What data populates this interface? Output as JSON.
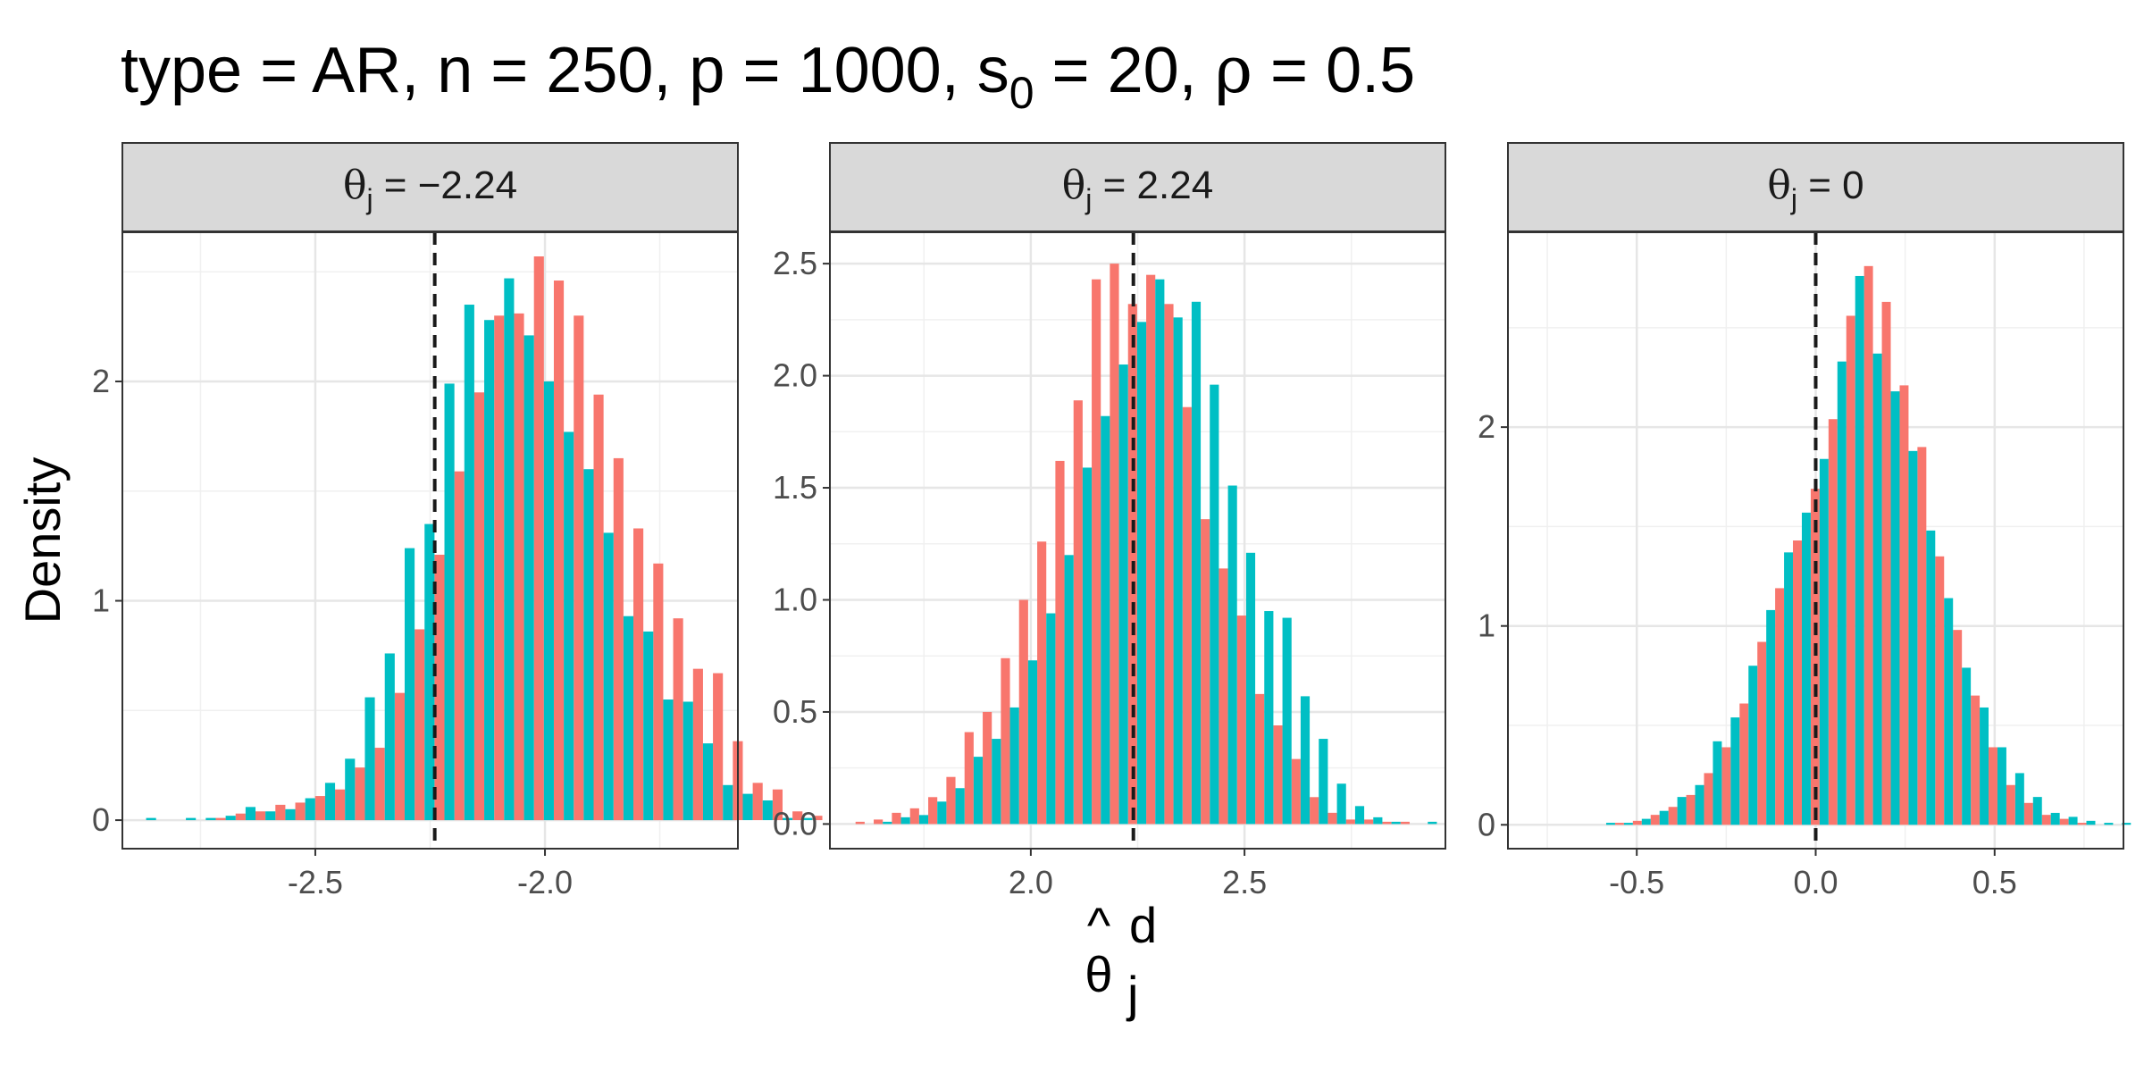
{
  "title": "type = AR, n = 250, p = 1000, s0 = 20, ρ = 0.5",
  "title_parts": {
    "a": "type = AR, n = 250, p = 1000, s",
    "sub": "0",
    "b": " = 20, ",
    "rho": "ρ",
    "c": " = 0.5"
  },
  "axes": {
    "ylabel": "Density",
    "xlabel_symbol": "θ",
    "xlabel_hat": "^",
    "xlabel_sub": "j",
    "xlabel_sup": "d"
  },
  "colors": {
    "series_a": "#F8766D",
    "series_b": "#00BFC4",
    "reference_line": "#1a1a1a",
    "strip_fill": "#d9d9d9"
  },
  "chart_data": [
    {
      "type": "bar",
      "panel_label": {
        "symbol": "θ",
        "sub": "j",
        "rest": " = −2.24"
      },
      "true_value": -2.24,
      "xlim": [
        -2.92,
        -1.58
      ],
      "ylim": [
        -0.13,
        2.68
      ],
      "xticks": [
        -2.5,
        -2.0
      ],
      "xtick_labels": [
        "-2.5",
        "-2.0"
      ],
      "yticks": [
        0,
        1,
        2
      ],
      "ytick_labels": [
        "0",
        "1",
        "2"
      ],
      "bin_width": 0.0433,
      "bin_start": -2.89,
      "series": [
        {
          "color": "red",
          "values": [
            0,
            0,
            0,
            0,
            0.01,
            0.03,
            0.04,
            0.07,
            0.08,
            0.11,
            0.14,
            0.24,
            0.33,
            0.58,
            0.87,
            1.21,
            1.59,
            1.95,
            2.3,
            2.31,
            2.57,
            2.46,
            2.3,
            1.94,
            1.65,
            1.33,
            1.17,
            0.92,
            0.69,
            0.67,
            0.36,
            0.17,
            0.14,
            0.04,
            0.02,
            0,
            0.02,
            0
          ]
        },
        {
          "color": "teal",
          "values": [
            0.01,
            0,
            0.01,
            0.01,
            0.02,
            0.06,
            0.04,
            0.05,
            0.1,
            0.17,
            0.28,
            0.56,
            0.76,
            1.24,
            1.35,
            1.99,
            2.35,
            2.28,
            2.47,
            2.21,
            2.0,
            1.77,
            1.6,
            1.31,
            0.93,
            0.86,
            0.55,
            0.54,
            0.35,
            0.16,
            0.12,
            0.09,
            0.01,
            0.01,
            0,
            0,
            0.01,
            0
          ]
        }
      ]
    },
    {
      "type": "bar",
      "panel_label": {
        "symbol": "θ",
        "sub": "j",
        "rest": " = 2.24"
      },
      "true_value": 2.24,
      "xlim": [
        1.53,
        2.97
      ],
      "ylim": [
        -0.11,
        2.64
      ],
      "xticks": [
        2.0,
        2.5
      ],
      "xtick_labels": [
        "2.0",
        "2.5"
      ],
      "yticks": [
        0,
        0.5,
        1.0,
        1.5,
        2.0,
        2.5
      ],
      "ytick_labels": [
        "0.0",
        "0.5",
        "1.0",
        "1.5",
        "2.0",
        "2.5"
      ],
      "bin_width": 0.0425,
      "bin_start": 1.59,
      "series": [
        {
          "color": "red",
          "values": [
            0.01,
            0.02,
            0.05,
            0.07,
            0.12,
            0.21,
            0.41,
            0.5,
            0.74,
            1.0,
            1.26,
            1.62,
            1.89,
            2.43,
            2.5,
            2.32,
            2.45,
            2.32,
            1.86,
            1.36,
            1.14,
            0.93,
            0.58,
            0.44,
            0.29,
            0.12,
            0.05,
            0.02,
            0.02,
            0.01,
            0.01,
            0
          ]
        },
        {
          "color": "teal",
          "values": [
            0,
            0.01,
            0.03,
            0.04,
            0.1,
            0.16,
            0.3,
            0.38,
            0.52,
            0.73,
            0.94,
            1.2,
            1.59,
            1.82,
            2.05,
            2.24,
            2.43,
            2.26,
            2.33,
            1.96,
            1.51,
            1.21,
            0.95,
            0.92,
            0.57,
            0.38,
            0.18,
            0.08,
            0.03,
            0.01,
            0,
            0.01
          ]
        }
      ]
    },
    {
      "type": "bar",
      "panel_label": {
        "symbol": "θ",
        "sub": "j",
        "rest": " = 0"
      },
      "true_value": 0,
      "xlim": [
        -0.86,
        0.86
      ],
      "ylim": [
        -0.12,
        2.98
      ],
      "xticks": [
        -0.5,
        0.0,
        0.5
      ],
      "xtick_labels": [
        "-0.5",
        "0.0",
        "0.5"
      ],
      "yticks": [
        0,
        1,
        2
      ],
      "ytick_labels": [
        "0",
        "1",
        "2"
      ],
      "bin_width": 0.0497,
      "bin_start": -0.66,
      "series": [
        {
          "color": "red",
          "values": [
            0,
            0,
            0.01,
            0.02,
            0.05,
            0.09,
            0.15,
            0.26,
            0.39,
            0.61,
            0.92,
            1.19,
            1.43,
            1.69,
            2.04,
            2.56,
            2.81,
            2.63,
            2.21,
            1.9,
            1.35,
            0.98,
            0.65,
            0.39,
            0.2,
            0.11,
            0.05,
            0.03,
            0.01,
            0,
            0
          ]
        },
        {
          "color": "teal",
          "values": [
            0,
            0.01,
            0.01,
            0.03,
            0.07,
            0.14,
            0.2,
            0.42,
            0.54,
            0.8,
            1.08,
            1.37,
            1.57,
            1.84,
            2.33,
            2.76,
            2.37,
            2.18,
            1.88,
            1.48,
            1.14,
            0.79,
            0.59,
            0.39,
            0.26,
            0.14,
            0.06,
            0.04,
            0.02,
            0.01,
            0.01
          ]
        }
      ]
    }
  ]
}
